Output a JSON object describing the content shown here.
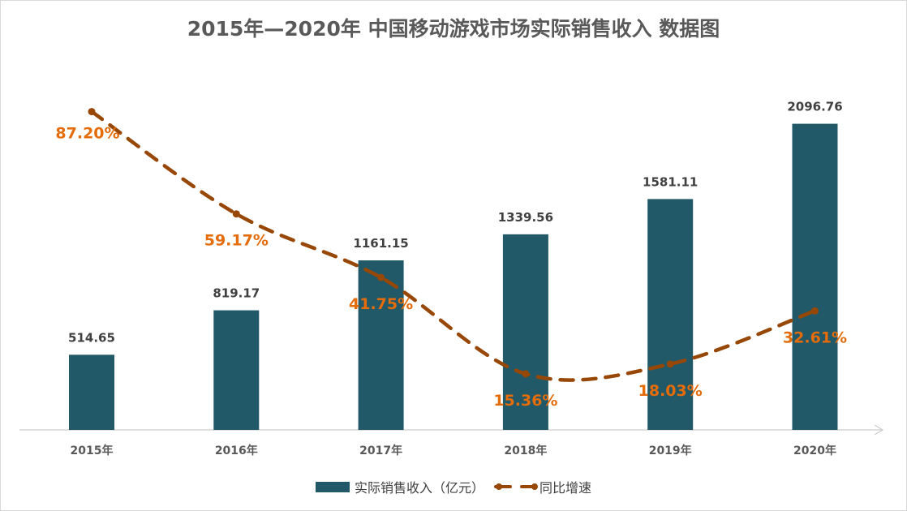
{
  "chart_data": {
    "type": "bar+line",
    "title": "2015年—2020年 中国移动游戏市场实际销售收入 数据图",
    "categories": [
      "2015年",
      "2016年",
      "2017年",
      "2018年",
      "2019年",
      "2020年"
    ],
    "series": [
      {
        "name": "实际销售收入（亿元）",
        "type": "bar",
        "axis": "primary",
        "values": [
          514.65,
          819.17,
          1161.15,
          1339.56,
          1581.11,
          2096.76
        ],
        "labels": [
          "514.65",
          "819.17",
          "1161.15",
          "1339.56",
          "1581.11",
          "2096.76"
        ],
        "color": "#215968"
      },
      {
        "name": "同比增速",
        "type": "line",
        "axis": "secondary",
        "style": "dashed-smooth-markers",
        "values": [
          87.2,
          59.17,
          41.75,
          15.36,
          18.03,
          32.61
        ],
        "labels": [
          "87.20%",
          "59.17%",
          "41.75%",
          "15.36%",
          "18.03%",
          "32.61%"
        ],
        "color": "#974706",
        "label_color": "#E46C0A"
      }
    ],
    "ylim": [
      0,
      2250
    ],
    "y2lim": [
      0,
      90
    ],
    "grid": false,
    "axes_visible": false,
    "legend": "bottom"
  }
}
